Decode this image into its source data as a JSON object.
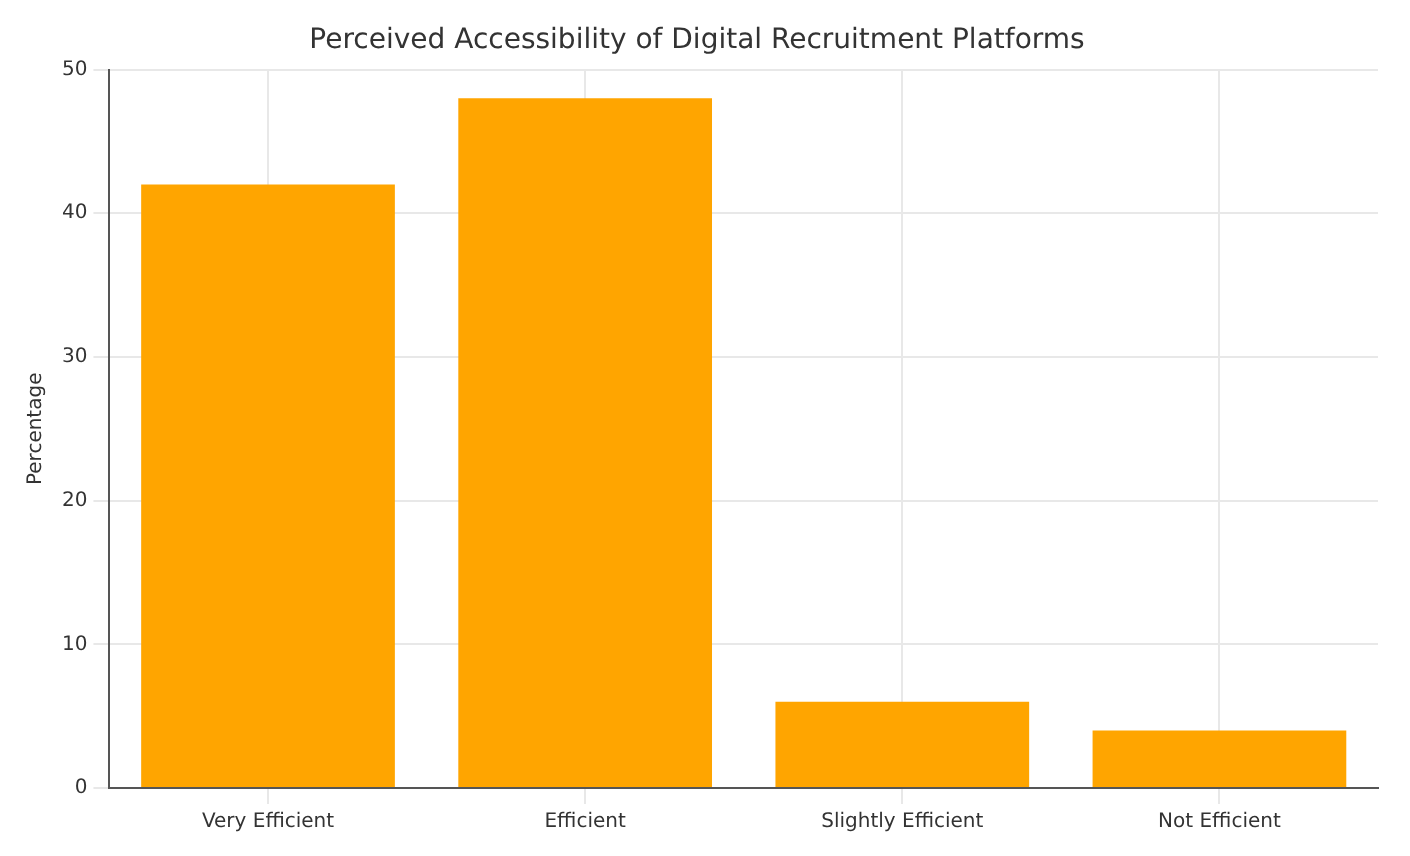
{
  "chart_data": {
    "type": "bar",
    "title": "Perceived Accessibility of Digital Recruitment Platforms",
    "ylabel": "Percentage",
    "categories": [
      "Very Efficient",
      "Efficient",
      "Slightly Efficient",
      "Not Efficient"
    ],
    "values": [
      42,
      48,
      6,
      4
    ],
    "color": "#ffa500",
    "ylim": [
      0,
      50
    ],
    "yticks": [
      0,
      10,
      20,
      30,
      40,
      50
    ],
    "grid": true
  }
}
